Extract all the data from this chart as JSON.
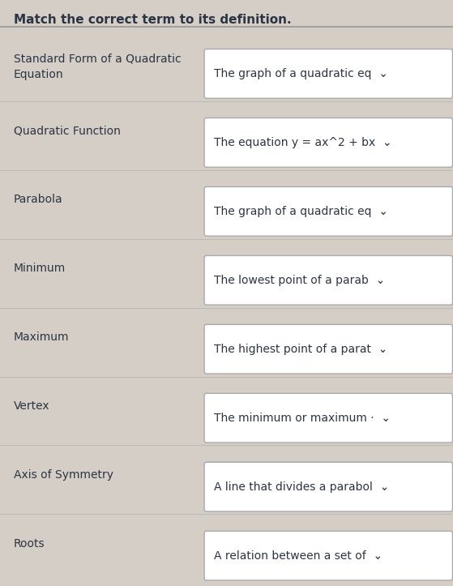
{
  "title": "Match the correct term to its definition.",
  "title_fontsize": 11,
  "background_color": "#d4cec6",
  "rows": [
    {
      "term": "Standard Form of a Quadratic\nEquation",
      "definition": "The graph of a quadratic eq  ⌄"
    },
    {
      "term": "Quadratic Function",
      "definition": "The equation y = ax^2 + bx  ⌄"
    },
    {
      "term": "Parabola",
      "definition": "The graph of a quadratic eq  ⌄"
    },
    {
      "term": "Minimum",
      "definition": "The lowest point of a parab  ⌄"
    },
    {
      "term": "Maximum",
      "definition": "The highest point of a parat  ⌄"
    },
    {
      "term": "Vertex",
      "definition": "The minimum or maximum ·  ⌄"
    },
    {
      "term": "Axis of Symmetry",
      "definition": "A line that divides a parabol  ⌄"
    },
    {
      "term": "Roots",
      "definition": "A relation between a set of  ⌄"
    }
  ],
  "term_fontsize": 10,
  "def_fontsize": 10,
  "term_color": "#2c3444",
  "def_color": "#2c3444",
  "box_bg_color": "#ffffff",
  "box_border_color": "#aaaaaa",
  "divider_color": "#bbbbbb",
  "header_divider_color": "#999999"
}
